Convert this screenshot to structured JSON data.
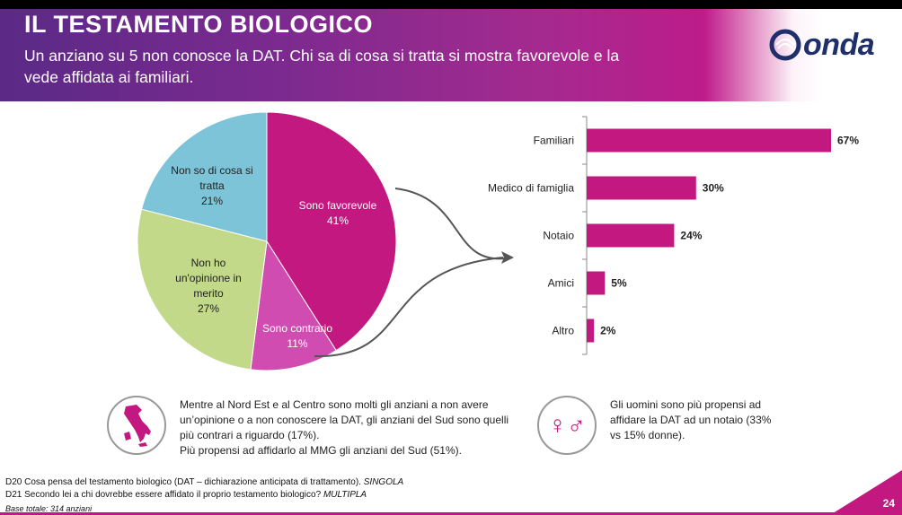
{
  "header": {
    "title": "IL TESTAMENTO BIOLOGICO",
    "subtitle": "Un anziano su 5 non conosce la DAT. Chi sa di cosa si tratta si mostra favorevole e la vede affidata ai familiari.",
    "logo_text": "onda"
  },
  "colors": {
    "magenta": "#c2187f",
    "light_magenta": "#d14cb0",
    "light_blue": "#7ec4d8",
    "light_green": "#c2d98a",
    "header_purple": "#6b2a8c"
  },
  "chart_data": [
    {
      "type": "pie",
      "slices": [
        {
          "label": "Sono favorevole",
          "value": 41,
          "value_label": "41%",
          "color": "#c2187f"
        },
        {
          "label": "Sono contrario",
          "value": 11,
          "value_label": "11%",
          "color": "#d14cb0"
        },
        {
          "label": "Non ho un'opinione in merito",
          "value": 27,
          "value_label": "27%",
          "color": "#c2d98a"
        },
        {
          "label": "Non so di cosa si tratta",
          "value": 21,
          "value_label": "21%",
          "color": "#7ec4d8"
        }
      ]
    },
    {
      "type": "bar",
      "orientation": "horizontal",
      "categories": [
        "Familiari",
        "Medico di famiglia",
        "Notaio",
        "Amici",
        "Altro"
      ],
      "values": [
        67,
        30,
        24,
        5,
        2
      ],
      "value_labels": [
        "67%",
        "30%",
        "24%",
        "5%",
        "2%"
      ],
      "color": "#c2187f"
    }
  ],
  "notes": {
    "italy": "Mentre al Nord Est e al Centro sono molti gli anziani a non avere un’opinione o a non conoscere la DAT, gli anziani del Sud sono quelli più contrari a riguardo (17%).",
    "italy_2": "Più propensi ad affidarlo al MMG gli anziani del Sud (51%).",
    "gender": "Gli uomini sono più propensi ad affidare la DAT ad un notaio (33% vs 15% donne).",
    "gender_icon": "gender-symbols-icon",
    "italy_icon": "italy-map-icon"
  },
  "footnotes": {
    "d20": "D20 Cosa pensa del testamento biologico (DAT – dichiarazione anticipata di trattamento).",
    "d20_tag": "SINGOLA",
    "d21": "D21 Secondo lei a chi dovrebbe essere affidato il proprio testamento biologico?",
    "d21_tag": "MULTIPLA",
    "base": "Base totale: 314 anziani"
  },
  "page_number": "24"
}
